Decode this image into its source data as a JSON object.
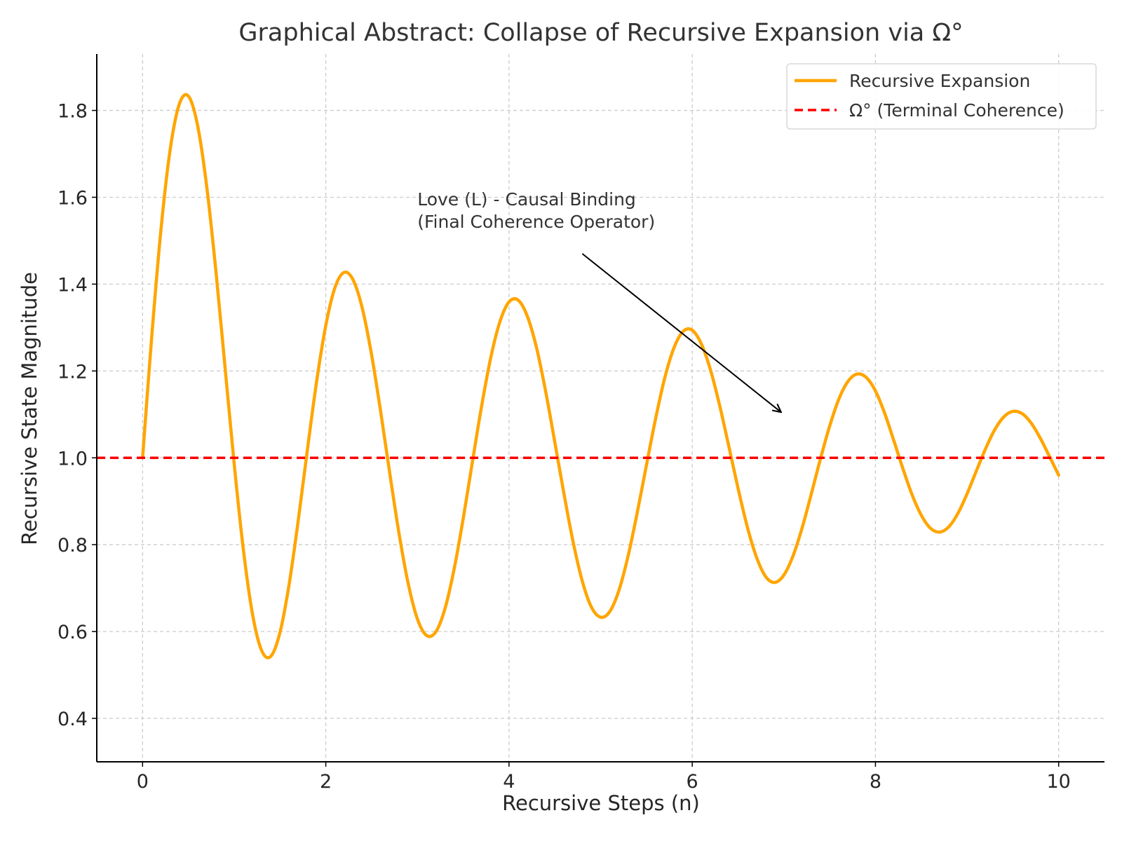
{
  "chart_data": {
    "type": "line",
    "title": "Graphical Abstract: Collapse of Recursive Expansion via Ω°",
    "xlabel": "Recursive Steps (n)",
    "ylabel": "Recursive State Magnitude",
    "xlim": [
      -0.5,
      10.5
    ],
    "ylim": [
      0.3,
      1.93
    ],
    "x_ticks": [
      0,
      2,
      4,
      6,
      8,
      10
    ],
    "x_tick_labels": [
      "0",
      "2",
      "4",
      "6",
      "8",
      "10"
    ],
    "y_ticks": [
      0.4,
      0.6,
      0.8,
      1.0,
      1.2,
      1.4,
      1.6,
      1.8
    ],
    "y_tick_labels": [
      "0.4",
      "0.6",
      "0.8",
      "1.0",
      "1.2",
      "1.4",
      "1.6",
      "1.8"
    ],
    "grid": true,
    "legend_position": "top-right",
    "series": [
      {
        "name": "Recursive Expansion",
        "color": "#FFA500",
        "style": "solid",
        "x": [
          0,
          0.1,
          0.2,
          0.3,
          0.4,
          0.5,
          0.6,
          0.7,
          0.8,
          0.9,
          1.0,
          1.1,
          1.2,
          1.3,
          1.4,
          1.5,
          1.6,
          1.7,
          1.8,
          1.9,
          2.0,
          2.1,
          2.2,
          2.3,
          2.4,
          2.5,
          2.6,
          2.7,
          2.8,
          2.9,
          3.0,
          3.1,
          3.2,
          3.3,
          3.4,
          3.5,
          3.6,
          3.7,
          3.8,
          3.9,
          4.0,
          4.1,
          4.2,
          4.3,
          4.4,
          4.5,
          4.6,
          4.7,
          4.8,
          4.9,
          5.0,
          5.1,
          5.2,
          5.3,
          5.4,
          5.5,
          5.6,
          5.7,
          5.8,
          5.9,
          6.0,
          6.1,
          6.2,
          6.3,
          6.4,
          6.5,
          6.6,
          6.7,
          6.8,
          6.9,
          7.0,
          7.1,
          7.2,
          7.3,
          7.4,
          7.5,
          7.6,
          7.7,
          7.8,
          7.9,
          8.0,
          8.1,
          8.2,
          8.3,
          8.4,
          8.5,
          8.6,
          8.7,
          8.8,
          8.9,
          9.0,
          9.1,
          9.2,
          9.3,
          9.4,
          9.5,
          9.6,
          9.7,
          9.8,
          9.9,
          10.0
        ],
        "y": [
          1.0,
          1.279,
          1.524,
          1.708,
          1.814,
          1.833,
          1.766,
          1.625,
          1.431,
          1.209,
          0.986,
          0.789,
          0.64,
          0.556,
          0.543,
          0.598,
          0.709,
          0.857,
          1.02,
          1.176,
          1.305,
          1.392,
          1.427,
          1.409,
          1.343,
          1.237,
          1.105,
          0.962,
          0.825,
          0.71,
          0.629,
          0.591,
          0.599,
          0.652,
          0.743,
          0.86,
          0.99,
          1.118,
          1.23,
          1.313,
          1.359,
          1.363,
          1.326,
          1.254,
          1.153,
          1.036,
          0.917,
          0.806,
          0.716,
          0.656,
          0.633,
          0.646,
          0.695,
          0.774,
          0.874,
          0.983,
          1.09,
          1.184,
          1.253,
          1.291,
          1.294,
          1.262,
          1.202,
          1.12,
          1.026,
          0.93,
          0.842,
          0.772,
          0.727,
          0.713,
          0.73,
          0.774,
          0.839,
          0.917,
          0.998,
          1.073,
          1.135,
          1.176,
          1.193,
          1.185,
          1.154,
          1.103,
          1.04,
          0.975,
          0.915,
          0.868,
          0.838,
          0.829,
          0.841,
          0.872,
          0.917,
          0.969,
          1.02,
          1.064,
          1.094,
          1.107,
          1.102,
          1.08,
          1.045,
          1.003,
          0.96
        ]
      },
      {
        "name": "Ω° (Terminal Coherence)",
        "color": "#FF0000",
        "style": "dashed",
        "y_constant": 1.0
      }
    ],
    "annotation": {
      "line1": "Love (L) - Causal Binding",
      "line2": "(Final Coherence Operator)",
      "text_at": [
        3.0,
        1.53
      ],
      "arrow_from": [
        4.8,
        1.47
      ],
      "arrow_to": [
        6.97,
        1.105
      ]
    }
  }
}
